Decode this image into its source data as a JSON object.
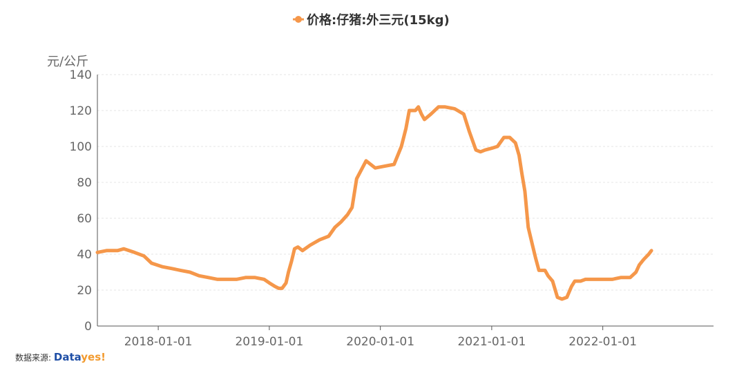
{
  "chart_data": {
    "type": "line",
    "legend": {
      "label": "价格:仔猪:外三元(15kg)",
      "position": "top-center"
    },
    "ylabel": "元/公斤",
    "ylim": [
      0,
      140
    ],
    "yticks": [
      0,
      20,
      40,
      60,
      80,
      100,
      120,
      140
    ],
    "xlim": [
      "2017-06-15",
      "2022-12-31"
    ],
    "xticks": [
      "2018-01-01",
      "2019-01-01",
      "2020-01-01",
      "2021-01-01",
      "2022-01-01"
    ],
    "grid": true,
    "series": [
      {
        "name": "价格:仔猪:外三元(15kg)",
        "color": "#f5974a",
        "x": [
          "2017-06-15",
          "2017-07-15",
          "2017-08-20",
          "2017-09-10",
          "2017-10-15",
          "2017-11-15",
          "2017-12-10",
          "2018-01-15",
          "2018-02-15",
          "2018-03-15",
          "2018-04-15",
          "2018-05-15",
          "2018-06-15",
          "2018-07-15",
          "2018-08-15",
          "2018-09-15",
          "2018-10-15",
          "2018-11-15",
          "2018-12-15",
          "2019-01-01",
          "2019-01-20",
          "2019-02-01",
          "2019-02-12",
          "2019-02-25",
          "2019-03-05",
          "2019-03-15",
          "2019-03-25",
          "2019-04-05",
          "2019-04-20",
          "2019-05-15",
          "2019-06-15",
          "2019-07-15",
          "2019-08-05",
          "2019-08-25",
          "2019-09-15",
          "2019-09-30",
          "2019-10-15",
          "2019-11-15",
          "2019-12-15",
          "2020-01-15",
          "2020-02-15",
          "2020-03-10",
          "2020-03-25",
          "2020-04-05",
          "2020-04-25",
          "2020-05-05",
          "2020-05-15",
          "2020-05-25",
          "2020-06-15",
          "2020-07-10",
          "2020-08-01",
          "2020-09-01",
          "2020-10-01",
          "2020-10-20",
          "2020-11-10",
          "2020-11-25",
          "2020-12-10",
          "2021-01-01",
          "2021-01-20",
          "2021-02-10",
          "2021-03-01",
          "2021-03-20",
          "2021-04-01",
          "2021-04-10",
          "2021-04-20",
          "2021-05-01",
          "2021-05-15",
          "2021-05-25",
          "2021-06-05",
          "2021-06-15",
          "2021-06-25",
          "2021-07-05",
          "2021-07-20",
          "2021-08-05",
          "2021-08-20",
          "2021-09-05",
          "2021-09-20",
          "2021-10-01",
          "2021-10-20",
          "2021-11-05",
          "2021-11-20",
          "2021-12-10",
          "2022-01-05",
          "2022-02-01",
          "2022-03-01",
          "2022-04-01",
          "2022-04-20",
          "2022-05-01",
          "2022-05-15",
          "2022-06-01",
          "2022-06-10"
        ],
        "y": [
          41,
          42,
          42,
          43,
          41,
          39,
          35,
          33,
          32,
          31,
          30,
          28,
          27,
          26,
          26,
          26,
          27,
          27,
          26,
          24,
          22,
          21,
          21,
          24,
          30,
          36,
          43,
          44,
          42,
          45,
          48,
          50,
          55,
          58,
          62,
          66,
          82,
          92,
          88,
          89,
          90,
          100,
          110,
          120,
          120,
          122,
          118,
          115,
          118,
          122,
          122,
          121,
          118,
          108,
          98,
          97,
          98,
          99,
          100,
          105,
          105,
          102,
          95,
          85,
          75,
          55,
          45,
          38,
          31,
          31,
          31,
          28,
          25,
          16,
          15,
          16,
          22,
          25,
          25,
          26,
          26,
          26,
          26,
          26,
          27,
          27,
          30,
          34,
          37,
          40,
          42
        ]
      }
    ]
  },
  "source": {
    "prefix": "数据来源:",
    "brand_data": "Data",
    "brand_yes": "yes!"
  }
}
